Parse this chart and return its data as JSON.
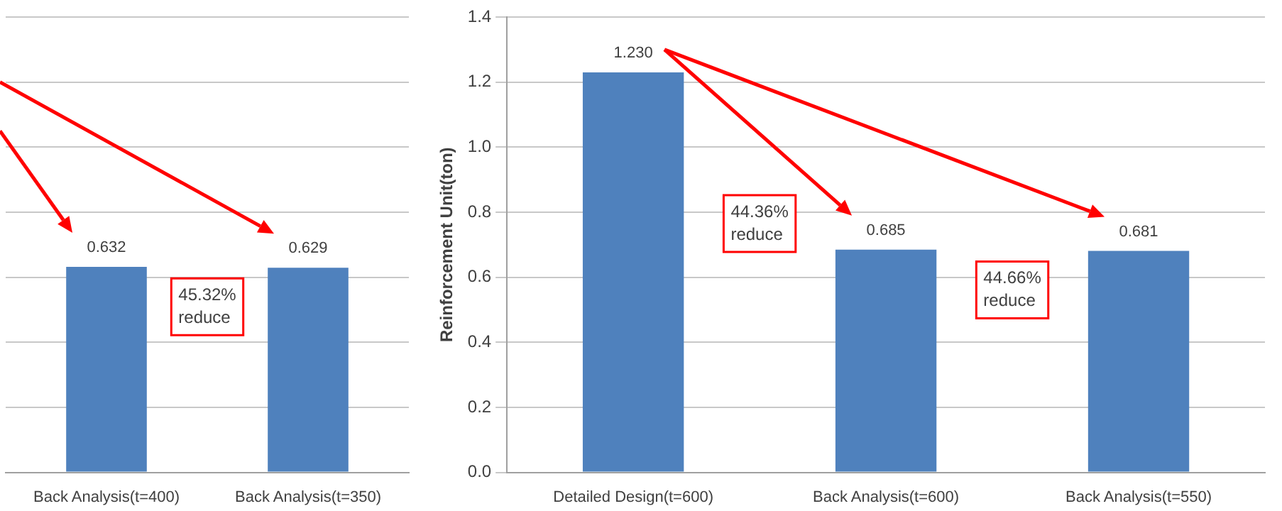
{
  "chart_data": [
    {
      "type": "bar",
      "categories": [
        "Back Analysis(t=400)",
        "Back Analysis(t=350)"
      ],
      "series": [
        {
          "color": "#4f81bd",
          "values": [
            0.632,
            0.629
          ]
        }
      ],
      "value_labels": [
        "0.632",
        "0.629"
      ],
      "ylim": [
        0,
        1.4
      ],
      "yticks": [
        {
          "value": 0,
          "label": null
        },
        {
          "value": 0.2,
          "label": null
        },
        {
          "value": 0.4,
          "label": null
        },
        {
          "value": 0.6,
          "label": null
        },
        {
          "value": 0.8,
          "label": null
        },
        {
          "value": 1.0,
          "label": null
        },
        {
          "value": 1.2,
          "label": null
        },
        {
          "value": 1.4,
          "label": null
        }
      ],
      "tick_labels": "x",
      "grid": "y",
      "annotations": [
        "45.32%\nreduce"
      ]
    },
    {
      "type": "bar",
      "ylabel": "Reinforcement Unit(ton)",
      "categories": [
        "Detailed Design(t=600)",
        "Back Analysis(t=600)",
        "Back Analysis(t=550)"
      ],
      "series": [
        {
          "color": "#4f81bd",
          "values": [
            1.23,
            0.685,
            0.681
          ]
        }
      ],
      "value_labels": [
        "1.230",
        "0.685",
        "0.681"
      ],
      "ylim": [
        0,
        1.4
      ],
      "yticks": [
        {
          "value": 0,
          "label": "0.0"
        },
        {
          "value": 0.2,
          "label": "0.2"
        },
        {
          "value": 0.4,
          "label": "0.4"
        },
        {
          "value": 0.6,
          "label": "0.6"
        },
        {
          "value": 0.8,
          "label": "0.8"
        },
        {
          "value": 1.0,
          "label": "1.0"
        },
        {
          "value": 1.2,
          "label": "1.2"
        },
        {
          "value": 1.4,
          "label": "1.4"
        }
      ],
      "grid": "y",
      "annotations": [
        "44.36%\nreduce",
        "44.66%\nreduce"
      ]
    }
  ]
}
